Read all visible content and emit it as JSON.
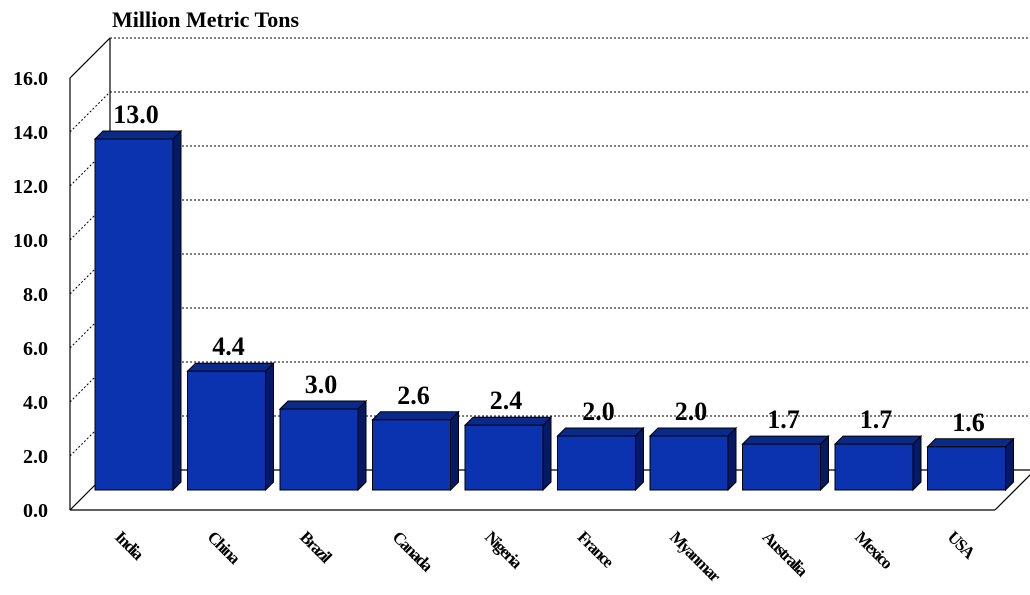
{
  "chart_data": {
    "type": "bar",
    "title": "Million Metric Tons",
    "categories": [
      "India",
      "China",
      "Brazil",
      "Canada",
      "Nigeria",
      "France",
      "Myanmar",
      "Australia",
      "Mexico",
      "USA"
    ],
    "values": [
      13.0,
      4.4,
      3.0,
      2.6,
      2.4,
      2.0,
      2.0,
      1.7,
      1.7,
      1.6
    ],
    "value_labels": [
      "13.0",
      "4.4",
      "3.0",
      "2.6",
      "2.4",
      "2.0",
      "2.0",
      "1.7",
      "1.7",
      "1.6"
    ],
    "y_ticks": [
      "0.0",
      "2.0",
      "4.0",
      "6.0",
      "8.0",
      "10.0",
      "12.0",
      "14.0",
      "16.0"
    ],
    "ylim": [
      0,
      16
    ],
    "grid": true,
    "legend": "none",
    "colors": {
      "bar_front": "#0b33b0",
      "bar_top": "#0a2a8a",
      "bar_side": "#051a66"
    }
  }
}
